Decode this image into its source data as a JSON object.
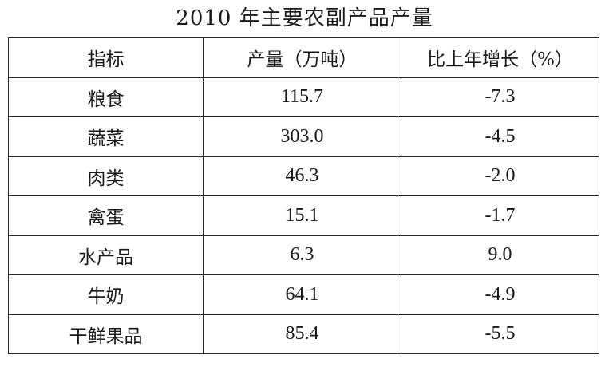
{
  "title": "2010 年主要农副产品产量",
  "table": {
    "headers": [
      "指标",
      "产量（万吨）",
      "比上年增长（%）"
    ],
    "rows": [
      [
        "粮食",
        "115.7",
        "-7.3"
      ],
      [
        "蔬菜",
        "303.0",
        "-4.5"
      ],
      [
        "肉类",
        "46.3",
        "-2.0"
      ],
      [
        "禽蛋",
        "15.1",
        "-1.7"
      ],
      [
        "水产品",
        "6.3",
        "9.0"
      ],
      [
        "牛奶",
        "64.1",
        "-4.9"
      ],
      [
        "干鲜果品",
        "85.4",
        "-5.5"
      ]
    ]
  }
}
